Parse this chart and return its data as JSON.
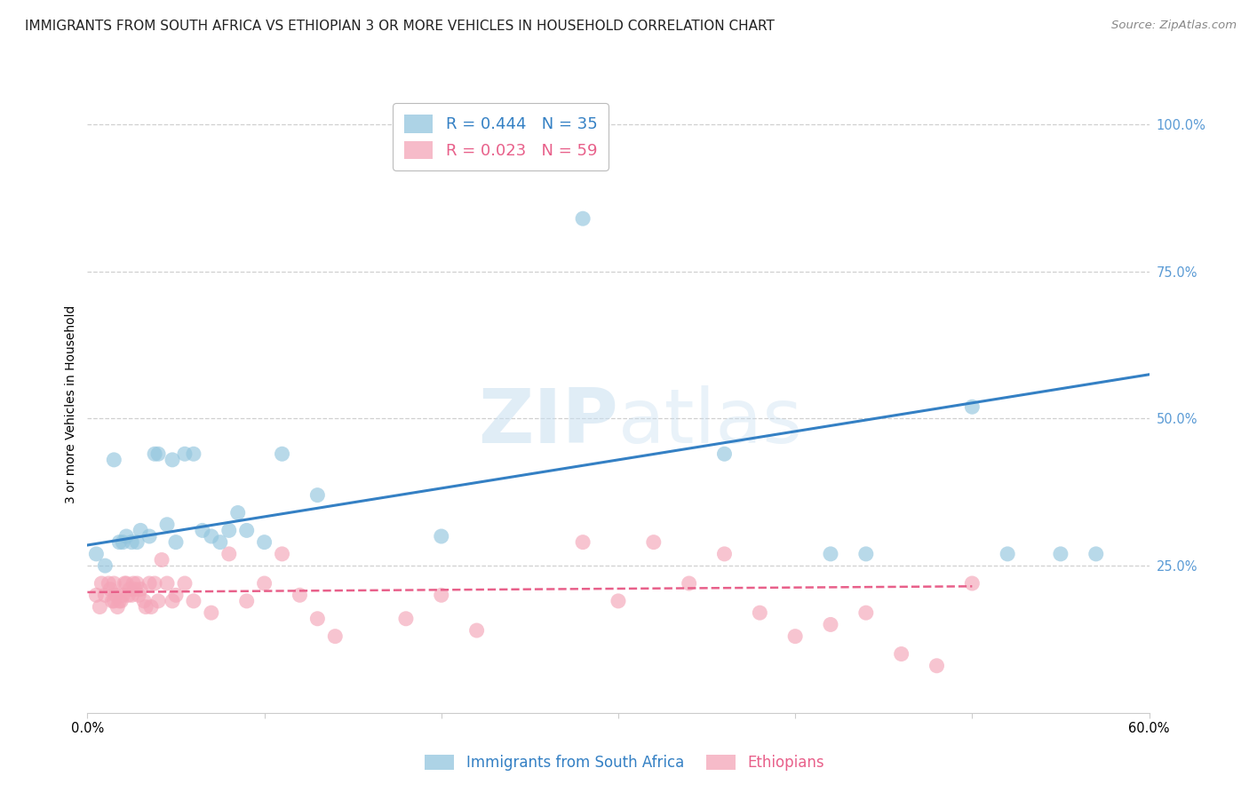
{
  "title": "IMMIGRANTS FROM SOUTH AFRICA VS ETHIOPIAN 3 OR MORE VEHICLES IN HOUSEHOLD CORRELATION CHART",
  "source": "Source: ZipAtlas.com",
  "ylabel": "3 or more Vehicles in Household",
  "ytick_labels": [
    "100.0%",
    "75.0%",
    "50.0%",
    "25.0%"
  ],
  "ytick_values": [
    1.0,
    0.75,
    0.5,
    0.25
  ],
  "xlim": [
    0.0,
    0.6
  ],
  "ylim": [
    0.0,
    1.05
  ],
  "watermark_text": "ZIPatlas",
  "legend_blue_r": "R = 0.444",
  "legend_blue_n": "N = 35",
  "legend_pink_r": "R = 0.023",
  "legend_pink_n": "N = 59",
  "legend_blue_label": "Immigrants from South Africa",
  "legend_pink_label": "Ethiopians",
  "blue_color": "#92c5de",
  "pink_color": "#f4a5b8",
  "blue_line_color": "#3480c4",
  "pink_line_color": "#e8608a",
  "blue_x": [
    0.005,
    0.01,
    0.015,
    0.018,
    0.02,
    0.022,
    0.025,
    0.028,
    0.03,
    0.035,
    0.038,
    0.04,
    0.045,
    0.048,
    0.05,
    0.055,
    0.06,
    0.065,
    0.07,
    0.075,
    0.08,
    0.085,
    0.09,
    0.1,
    0.11,
    0.13,
    0.2,
    0.28,
    0.36,
    0.42,
    0.44,
    0.5,
    0.52,
    0.55,
    0.57
  ],
  "blue_y": [
    0.27,
    0.25,
    0.43,
    0.29,
    0.29,
    0.3,
    0.29,
    0.29,
    0.31,
    0.3,
    0.44,
    0.44,
    0.32,
    0.43,
    0.29,
    0.44,
    0.44,
    0.31,
    0.3,
    0.29,
    0.31,
    0.34,
    0.31,
    0.29,
    0.44,
    0.37,
    0.3,
    0.84,
    0.44,
    0.27,
    0.27,
    0.52,
    0.27,
    0.27,
    0.27
  ],
  "pink_x": [
    0.005,
    0.007,
    0.008,
    0.01,
    0.012,
    0.013,
    0.014,
    0.015,
    0.015,
    0.016,
    0.017,
    0.018,
    0.019,
    0.02,
    0.021,
    0.022,
    0.023,
    0.024,
    0.025,
    0.026,
    0.027,
    0.028,
    0.029,
    0.03,
    0.032,
    0.033,
    0.035,
    0.036,
    0.038,
    0.04,
    0.042,
    0.045,
    0.048,
    0.05,
    0.055,
    0.06,
    0.07,
    0.08,
    0.09,
    0.1,
    0.11,
    0.12,
    0.13,
    0.14,
    0.18,
    0.2,
    0.22,
    0.28,
    0.3,
    0.32,
    0.34,
    0.36,
    0.38,
    0.4,
    0.42,
    0.44,
    0.46,
    0.48,
    0.5
  ],
  "pink_y": [
    0.2,
    0.18,
    0.22,
    0.2,
    0.22,
    0.21,
    0.19,
    0.19,
    0.22,
    0.2,
    0.18,
    0.19,
    0.19,
    0.2,
    0.22,
    0.22,
    0.2,
    0.21,
    0.2,
    0.22,
    0.21,
    0.22,
    0.2,
    0.21,
    0.19,
    0.18,
    0.22,
    0.18,
    0.22,
    0.19,
    0.26,
    0.22,
    0.19,
    0.2,
    0.22,
    0.19,
    0.17,
    0.27,
    0.19,
    0.22,
    0.27,
    0.2,
    0.16,
    0.13,
    0.16,
    0.2,
    0.14,
    0.29,
    0.19,
    0.29,
    0.22,
    0.27,
    0.17,
    0.13,
    0.15,
    0.17,
    0.1,
    0.08,
    0.22
  ],
  "blue_trend_x0": 0.0,
  "blue_trend_x1": 0.6,
  "blue_trend_y0": 0.285,
  "blue_trend_y1": 0.575,
  "pink_trend_x0": 0.0,
  "pink_trend_x1": 0.5,
  "pink_trend_y0": 0.205,
  "pink_trend_y1": 0.215,
  "grid_color": "#d0d0d0",
  "background_color": "#ffffff",
  "title_fontsize": 11,
  "axis_label_fontsize": 10,
  "tick_fontsize": 10.5,
  "right_tick_color": "#5b9bd5",
  "xtick_positions": [
    0.0,
    0.1,
    0.2,
    0.3,
    0.4,
    0.5,
    0.6
  ],
  "xtick_labels": [
    "0.0%",
    "",
    "",
    "",
    "",
    "",
    "60.0%"
  ]
}
